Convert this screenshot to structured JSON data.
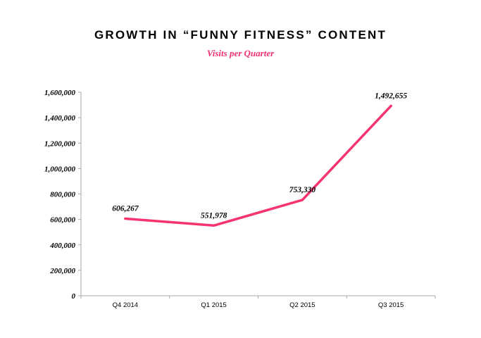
{
  "chart_data": {
    "type": "line",
    "title": "GROWTH IN “FUNNY FITNESS” CONTENT",
    "subtitle": "Visits per Quarter",
    "xlabel": "",
    "ylabel": "",
    "categories": [
      "Q4 2014",
      "Q1 2015",
      "Q2 2015",
      "Q3 2015"
    ],
    "series": [
      {
        "name": "Visits",
        "values": [
          606267,
          551978,
          753330,
          1492655
        ],
        "color": "#f7346f"
      }
    ],
    "data_labels": [
      "606,267",
      "551,978",
      "753,330",
      "1,492,655"
    ],
    "ylim": [
      0,
      1600000
    ],
    "yticks": [
      0,
      200000,
      400000,
      600000,
      800000,
      1000000,
      1200000,
      1400000,
      1600000
    ],
    "ytick_labels": [
      "0",
      "200,000",
      "400,000",
      "600,000",
      "800,000",
      "1,000,000",
      "1,200,000",
      "1,400,000",
      "1,600,000"
    ],
    "grid": false,
    "legend": "none"
  }
}
